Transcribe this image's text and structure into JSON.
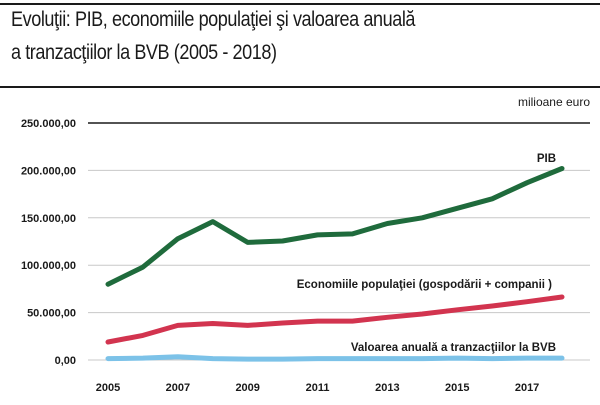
{
  "title": {
    "line1": "Evoluţii: PIB, economiile populaţiei şi valoarea anuală",
    "line2": "a tranzacţiilor la BVB (2005 - 2018)"
  },
  "chart_data": {
    "type": "line",
    "title": "Evoluţii: PIB, economiile populaţiei şi valoarea anuală a tranzacţiilor la BVB (2005 - 2018)",
    "unit_label": "milioane euro",
    "x": [
      2005,
      2006,
      2007,
      2008,
      2009,
      2010,
      2011,
      2012,
      2013,
      2014,
      2015,
      2016,
      2017,
      2018
    ],
    "x_tick_labels": [
      "2005",
      "2007",
      "2009",
      "2011",
      "2013",
      "2015",
      "2017"
    ],
    "x_tick_values": [
      2005,
      2007,
      2009,
      2011,
      2013,
      2015,
      2017
    ],
    "ylim": [
      0,
      250000
    ],
    "y_ticks": [
      0,
      50000,
      100000,
      150000,
      200000,
      250000
    ],
    "y_tick_labels": [
      "0,00",
      "50.000,00",
      "100.000,00",
      "150.000,00",
      "200.000,00",
      "250.000,00"
    ],
    "grid": "horizontal",
    "series": [
      {
        "name": "PIB",
        "color": "#1f6b3c",
        "values": [
          80000,
          98000,
          128000,
          146000,
          124000,
          125500,
          132000,
          133000,
          144000,
          150000,
          160000,
          170000,
          187000,
          202000
        ]
      },
      {
        "name": "Economiile populaţiei (gospodării + companii )",
        "color": "#d2344f",
        "values": [
          19000,
          26000,
          36500,
          38500,
          36500,
          39000,
          41000,
          41000,
          45000,
          48500,
          53000,
          57000,
          61500,
          66500
        ]
      },
      {
        "name": "Valoarea anuală a tranzacţiilor la BVB",
        "color": "#7cc2e8",
        "values": [
          1500,
          2000,
          3500,
          1500,
          1000,
          1000,
          1500,
          1500,
          1500,
          1500,
          2000,
          1500,
          2000,
          2000
        ]
      }
    ]
  }
}
